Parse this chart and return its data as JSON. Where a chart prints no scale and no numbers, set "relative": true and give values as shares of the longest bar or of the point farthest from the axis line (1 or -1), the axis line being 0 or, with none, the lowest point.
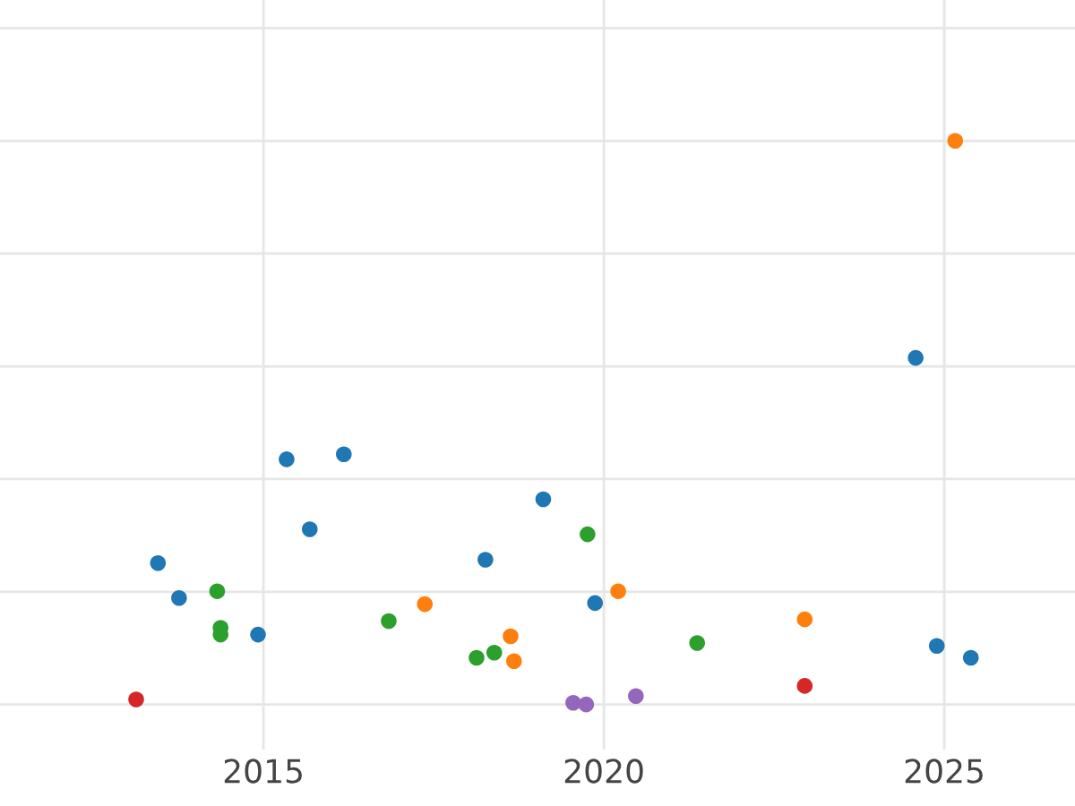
{
  "chart_data": {
    "type": "scatter",
    "relative": true,
    "xlim": [
      2011.13,
      2026.92
    ],
    "xticks": [
      2015,
      2020,
      2025
    ],
    "tick_labels": "x",
    "grid": true,
    "marker": "circle",
    "series": [
      {
        "color": "#1f77b4",
        "x": [
          2013.45,
          2013.76,
          2014.92,
          2015.34,
          2016.18,
          2015.68,
          2018.26,
          2019.11,
          2019.87,
          2024.58,
          2024.89,
          2025.39
        ],
        "values": [
          0.251,
          0.189,
          0.124,
          0.435,
          0.444,
          0.311,
          0.257,
          0.364,
          0.18,
          0.615,
          0.104,
          0.083
        ]
      },
      {
        "color": "#ff7f0e",
        "x": [
          2025.16,
          2017.37,
          2018.63,
          2018.68,
          2020.21,
          2022.95
        ],
        "values": [
          1,
          0.178,
          0.121,
          0.077,
          0.201,
          0.151
        ]
      },
      {
        "color": "#2ca02c",
        "x": [
          2014.32,
          2014.37,
          2014.37,
          2016.84,
          2018.13,
          2018.39,
          2019.76,
          2021.37
        ],
        "values": [
          0.201,
          0.136,
          0.124,
          0.148,
          0.083,
          0.092,
          0.302,
          0.109
        ]
      },
      {
        "color": "#d62728",
        "x": [
          2013.13,
          2022.95
        ],
        "values": [
          0.009,
          0.033
        ]
      },
      {
        "color": "#9467bd",
        "x": [
          2019.55,
          2019.74,
          2020.47
        ],
        "values": [
          0.003,
          0,
          0.015
        ]
      }
    ]
  }
}
